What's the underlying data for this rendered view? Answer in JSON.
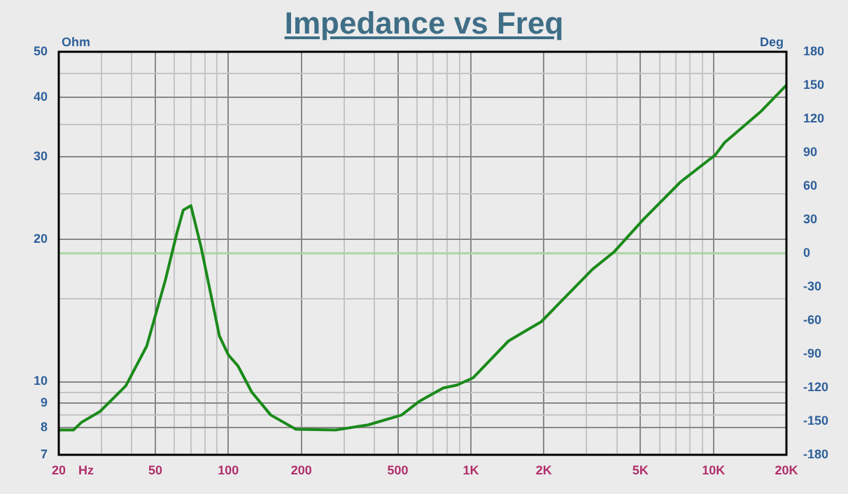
{
  "chart_data": {
    "type": "line",
    "title": "Impedance vs Freq",
    "xlabel": "Hz",
    "ylabel": "Ohm",
    "y2label": "Deg",
    "series": [
      {
        "color": "#1a8a1a",
        "x": [
          20,
          23,
          24.8,
          29.6,
          37.8,
          46.1,
          55,
          61.3,
          65.2,
          70.1,
          77.2,
          91.9,
          100,
          109.6,
          125,
          149.6,
          190,
          277,
          377,
          518,
          615,
          769,
          878,
          1024,
          1430,
          1952,
          2326,
          3172,
          3878,
          5160,
          7320,
          10160,
          11120,
          15640,
          20000
        ],
        "values": [
          7.9,
          7.9,
          8.2,
          8.65,
          9.8,
          11.9,
          16.4,
          20.6,
          23.1,
          23.6,
          19.3,
          12.5,
          11.4,
          10.8,
          9.5,
          8.5,
          7.93,
          7.9,
          8.1,
          8.5,
          9.1,
          9.7,
          9.84,
          10.2,
          12.2,
          13.4,
          14.7,
          17.3,
          18.8,
          22.1,
          26.5,
          30.2,
          32.1,
          37.3,
          42.5
        ]
      }
    ],
    "log": "xy",
    "xlim": [
      20,
      20000
    ],
    "xticks": [
      20,
      {
        "value": 30,
        "label": null
      },
      {
        "value": 40,
        "label": null
      },
      50,
      {
        "value": 60,
        "label": null
      },
      {
        "value": 70,
        "label": null
      },
      {
        "value": 80,
        "label": null
      },
      {
        "value": 90,
        "label": null
      },
      100,
      200,
      {
        "value": 300,
        "label": null
      },
      {
        "value": 400,
        "label": null
      },
      500,
      {
        "value": 600,
        "label": null
      },
      {
        "value": 700,
        "label": null
      },
      {
        "value": 800,
        "label": null
      },
      {
        "value": 900,
        "label": null
      },
      {
        "value": 1000,
        "label": "1K"
      },
      {
        "value": 2000,
        "label": "2K"
      },
      {
        "value": 3000,
        "label": null
      },
      {
        "value": 4000,
        "label": null
      },
      {
        "value": 5000,
        "label": "5K"
      },
      {
        "value": 6000,
        "label": null
      },
      {
        "value": 7000,
        "label": null
      },
      {
        "value": 8000,
        "label": null
      },
      {
        "value": 9000,
        "label": null
      },
      {
        "value": 10000,
        "label": "10K"
      },
      {
        "value": 20000,
        "label": "20K"
      }
    ],
    "ylim": [
      7,
      50
    ],
    "yticks": [
      7,
      8,
      {
        "value": 8.5,
        "label": null
      },
      9,
      {
        "value": 9.5,
        "label": null
      },
      10,
      {
        "value": 15,
        "label": null
      },
      20,
      {
        "value": 25,
        "label": null
      },
      30,
      {
        "value": 35,
        "label": null
      },
      40,
      {
        "value": 45,
        "label": null
      },
      50
    ],
    "y2lim": [
      -180,
      180
    ],
    "y2ticks": [
      -180,
      -150,
      -120,
      -90,
      -60,
      -30,
      0,
      30,
      60,
      90,
      120,
      150,
      180
    ],
    "ref_lines": [
      {
        "axis": "y2",
        "value": 0,
        "color": "#a8d8a0"
      }
    ],
    "grid": true,
    "legend": false,
    "marker": "none",
    "line_style": "solid"
  }
}
